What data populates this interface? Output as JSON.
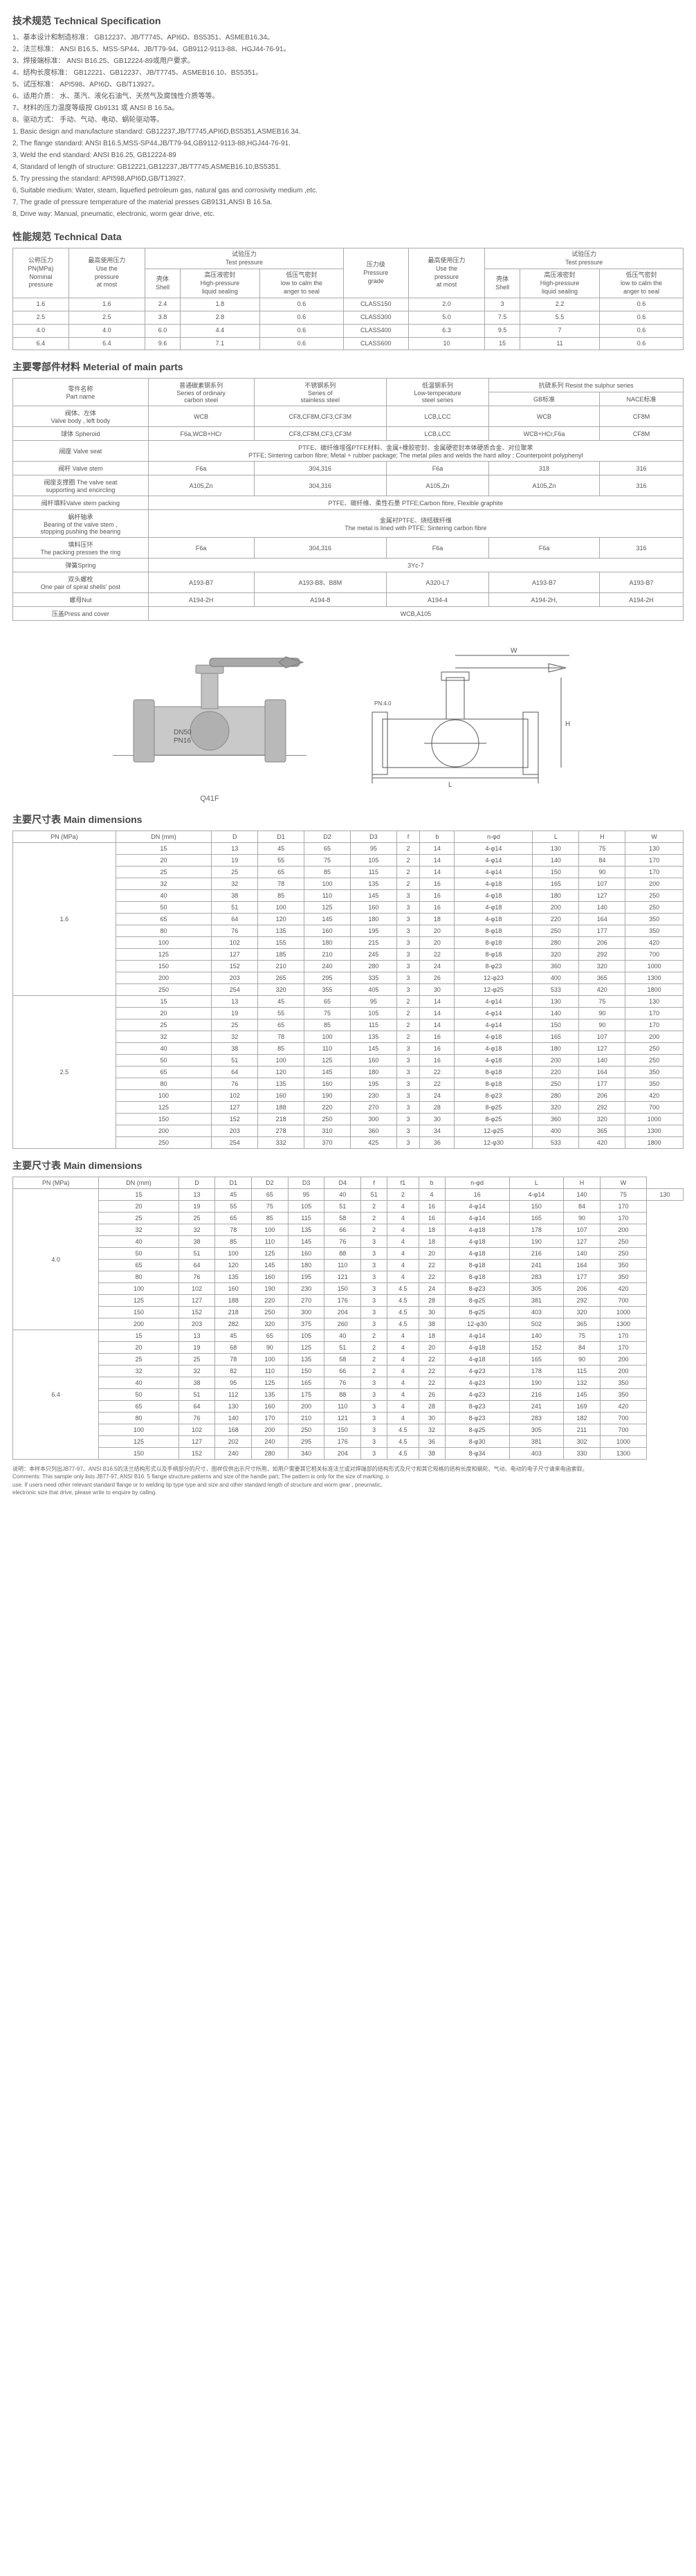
{
  "sections": {
    "techSpecTitle": "技术规范 Technical Specification",
    "perfTitle": "性能规范 Technical Data",
    "materialTitle": "主要零部件材料   Meterial of main parts",
    "dimTitle": "主要尺寸表 Main dimensions",
    "dimTitle2": "主要尺寸表 Main dimensions"
  },
  "specLinesCN": [
    "1、基本设计和制造标准：  GB12237、JB/T7745、API6D、BS5351、ASMEB16.34。",
    "2、法兰标准：  ANSI B16.5、MSS-SP44、JB/T79-94、GB9112-9113-88、HGJ44-76-91。",
    "3、焊接端标准：  ANSI B16.25、GB12224-89或用户要求。",
    "4、结构长度标准：  GB12221、GB12237、JB/T7745、ASMEB16.10、BS5351。",
    "5、试压标准：  API598、API6D、GB/T13927。",
    "6、适用介质：  水、蒸汽、液化石油气、天然气及腐蚀性介质等等。",
    "7、材料的压力温度等级按 Gb9131 或 ANSI B 16.5a。",
    "8、驱动方式：  手动、气动、电动、蜗轮驱动等。"
  ],
  "specLinesEN": [
    "1, Basic design and manufacture standard: GB12237,JB/T7745,API6D,BS5351,ASMEB16.34.",
    "2, The flange standard: ANSI B16.5,MSS-SP44,JB/T79-94,GB9112-9113-88,HGJ44-76-91.",
    "3, Weld the end standard: ANSI B16.25, GB12224-89",
    "4, Standard of length of structure: GB12221,GB12237,JB/T7745,ASMEB16.10,BS5351.",
    "5, Try pressing the standard: API598,API6D,GB/T13927.",
    "6, Suitable medium: Water, steam, liquefied petroleum gas, natural gas and corrosivity medium ,etc.",
    "7, The grade of pressure temperature of the material presses GB9131,ANSI B 16.5a.",
    "8, Drive way: Manual, pneumatic, electronic, worm gear drive, etc."
  ],
  "perf": {
    "headers": {
      "nominal": "公称压力\nPN(MPa)\nNominal\npressure",
      "maxUse": "最高使用压力\nUse the\npressure\nat most",
      "testPress": "试验压力\nTest pressure",
      "shell": "壳体\nShell",
      "highSeal": "高压液密封\nHigh-pressure\nliquid sealing",
      "lowSeal": "低压气密封\nlow to calm the\nanger to seal",
      "grade": "压力级\nPressure\ngrade"
    },
    "rows": [
      [
        "1.6",
        "1.6",
        "2.4",
        "1.8",
        "0.6",
        "CLASS150",
        "2.0",
        "3",
        "2.2",
        "0.6"
      ],
      [
        "2.5",
        "2.5",
        "3.8",
        "2.8",
        "0.6",
        "CLASS300",
        "5.0",
        "7.5",
        "5.5",
        "0.6"
      ],
      [
        "4.0",
        "4.0",
        "6.0",
        "4.4",
        "0.6",
        "CLASS400",
        "6.3",
        "9.5",
        "7",
        "0.6"
      ],
      [
        "6.4",
        "6.4",
        "9.6",
        "7.1",
        "0.6",
        "CLASS600",
        "10",
        "15",
        "11",
        "0.6"
      ]
    ]
  },
  "material": {
    "partHdr": "零件名称\nPart name",
    "series": [
      "普通碳素钢系列\nSeries of ordinary\ncarbon steel",
      "不锈钢系列\nSeries of\nstainless steel",
      "低温钢系列\nLow-temperature\nsteel series",
      "抗硫系列   Resist the sulphur series"
    ],
    "subSeries": [
      "GB标准",
      "NACE标准"
    ],
    "rows": [
      [
        "阀体、左体\nValve body , left body",
        "WCB",
        "CF8,CF8M,CF3,CF3M",
        "LCB,LCC",
        "WCB",
        "CF8M"
      ],
      [
        "球体 Spheroid",
        "F6a,WCB+HCr",
        "CF8,CF8M,CF3,CF3M",
        "LCB,LCC",
        "WCB+HCr,F6a",
        "CF8M"
      ],
      [
        "阀座 Valve seat",
        "__SPAN5__PTFE、碳纤维增强PTFE材料、金属+橡胶密封、金属硬密封本体硬质合金、对位聚苯\nPTFE; Sintering carbon fibre; Metal + rubber package; The metal piles and welds the hard alloy ; Counterpoint polyphenyl"
      ],
      [
        "阀杆 Valve stem",
        "F6a",
        "304,316",
        "F6a",
        "318",
        "316"
      ],
      [
        "阀座支撑圈 The valve seat\nsupporting and encircling",
        "A105,Zn",
        "304,316",
        "A105,Zn",
        "A105,Zn",
        "316"
      ],
      [
        "阀杆填料Valve stem packing",
        "__SPAN5__PTFE、碳纤维、柔性石墨 PTFE;Carbon fibre, Flexible graphite"
      ],
      [
        "蜗杆轴承\nBearing of the valve stem ,\nstopping pushing the bearing",
        "__SPAN5__金属衬PTFE、烧结碳纤维\nThe metal is lined with PTFE; Sintering carbon fibre"
      ],
      [
        "填料压环\nThe packing presses the ring",
        "F6a",
        "304,316",
        "F6a",
        "F6a",
        "316"
      ],
      [
        "弹簧Spring",
        "__SPAN5__3Yc-7"
      ],
      [
        "双头螺栓\nOne pair of spiral shells' post",
        "A193-B7",
        "A193-B8、B8M",
        "A320-L7",
        "A193-B7",
        "A193-B7"
      ],
      [
        "螺母Nut",
        "A194-2H",
        "A194-8",
        "A194-4",
        "A194-2H,",
        "A194-2H"
      ],
      [
        "压盖Press and cover",
        "__SPAN5__WCB,A105"
      ]
    ]
  },
  "diagram": {
    "leftLabel": "Q41F",
    "marks": [
      "DN50",
      "PN16",
      "PN:1.6",
      "PN:2.5"
    ]
  },
  "dim1": {
    "headers": [
      "PN (MPa)",
      "DN (mm)",
      "D",
      "D1",
      "D2",
      "D3",
      "f",
      "b",
      "n-φd",
      "L",
      "H",
      "W"
    ],
    "groups": [
      {
        "pn": "1.6",
        "rows": [
          [
            "15",
            "13",
            "45",
            "65",
            "95",
            "2",
            "14",
            "4-φ14",
            "130",
            "75",
            "130"
          ],
          [
            "20",
            "19",
            "55",
            "75",
            "105",
            "2",
            "14",
            "4-φ14",
            "140",
            "84",
            "170"
          ],
          [
            "25",
            "25",
            "65",
            "85",
            "115",
            "2",
            "14",
            "4-φ14",
            "150",
            "90",
            "170"
          ],
          [
            "32",
            "32",
            "78",
            "100",
            "135",
            "2",
            "16",
            "4-φ18",
            "165",
            "107",
            "200"
          ],
          [
            "40",
            "38",
            "85",
            "110",
            "145",
            "3",
            "16",
            "4-φ18",
            "180",
            "127",
            "250"
          ],
          [
            "50",
            "51",
            "100",
            "125",
            "160",
            "3",
            "16",
            "4-φ18",
            "200",
            "140",
            "250"
          ],
          [
            "65",
            "64",
            "120",
            "145",
            "180",
            "3",
            "18",
            "4-φ18",
            "220",
            "164",
            "350"
          ],
          [
            "80",
            "76",
            "135",
            "160",
            "195",
            "3",
            "20",
            "8-φ18",
            "250",
            "177",
            "350"
          ],
          [
            "100",
            "102",
            "155",
            "180",
            "215",
            "3",
            "20",
            "8-φ18",
            "280",
            "206",
            "420"
          ],
          [
            "125",
            "127",
            "185",
            "210",
            "245",
            "3",
            "22",
            "8-φ18",
            "320",
            "292",
            "700"
          ],
          [
            "150",
            "152",
            "210",
            "240",
            "280",
            "3",
            "24",
            "8-φ23",
            "360",
            "320",
            "1000"
          ],
          [
            "200",
            "203",
            "265",
            "295",
            "335",
            "3",
            "26",
            "12-φ23",
            "400",
            "365",
            "1300"
          ],
          [
            "250",
            "254",
            "320",
            "355",
            "405",
            "3",
            "30",
            "12-φ25",
            "533",
            "420",
            "1800"
          ]
        ]
      },
      {
        "pn": "2.5",
        "rows": [
          [
            "15",
            "13",
            "45",
            "65",
            "95",
            "2",
            "14",
            "4-φ14",
            "130",
            "75",
            "130"
          ],
          [
            "20",
            "19",
            "55",
            "75",
            "105",
            "2",
            "14",
            "4-φ14",
            "140",
            "90",
            "170"
          ],
          [
            "25",
            "25",
            "65",
            "85",
            "115",
            "2",
            "14",
            "4-φ14",
            "150",
            "90",
            "170"
          ],
          [
            "32",
            "32",
            "78",
            "100",
            "135",
            "2",
            "16",
            "4-φ18",
            "165",
            "107",
            "200"
          ],
          [
            "40",
            "38",
            "85",
            "110",
            "145",
            "3",
            "16",
            "4-φ18",
            "180",
            "127",
            "250"
          ],
          [
            "50",
            "51",
            "100",
            "125",
            "160",
            "3",
            "16",
            "4-φ18",
            "200",
            "140",
            "250"
          ],
          [
            "65",
            "64",
            "120",
            "145",
            "180",
            "3",
            "22",
            "8-φ18",
            "220",
            "164",
            "350"
          ],
          [
            "80",
            "76",
            "135",
            "160",
            "195",
            "3",
            "22",
            "8-φ18",
            "250",
            "177",
            "350"
          ],
          [
            "100",
            "102",
            "160",
            "190",
            "230",
            "3",
            "24",
            "8-φ23",
            "280",
            "206",
            "420"
          ],
          [
            "125",
            "127",
            "188",
            "220",
            "270",
            "3",
            "28",
            "8-φ25",
            "320",
            "292",
            "700"
          ],
          [
            "150",
            "152",
            "218",
            "250",
            "300",
            "3",
            "30",
            "8-φ25",
            "360",
            "320",
            "1000"
          ],
          [
            "200",
            "203",
            "278",
            "310",
            "360",
            "3",
            "34",
            "12-φ25",
            "400",
            "365",
            "1300"
          ],
          [
            "250",
            "254",
            "332",
            "370",
            "425",
            "3",
            "36",
            "12-φ30",
            "533",
            "420",
            "1800"
          ]
        ]
      }
    ]
  },
  "dim2": {
    "headers": [
      "PN (MPa)",
      "DN (mm)",
      "D",
      "D1",
      "D2",
      "D3",
      "D4",
      "f",
      "f1",
      "b",
      "n-φd",
      "L",
      "H",
      "W"
    ],
    "groups": [
      {
        "pn": "4.0",
        "rows": [
          [
            "15",
            "13",
            "45",
            "65",
            "95",
            "40",
            "51",
            "2",
            "4",
            "16",
            "4-φ14",
            "140",
            "75",
            "130"
          ],
          [
            "20",
            "19",
            "55",
            "75",
            "105",
            "51",
            "2",
            "4",
            "16",
            "4-φ14",
            "150",
            "84",
            "170"
          ],
          [
            "25",
            "25",
            "65",
            "85",
            "115",
            "58",
            "2",
            "4",
            "16",
            "4-φ14",
            "165",
            "90",
            "170"
          ],
          [
            "32",
            "32",
            "78",
            "100",
            "135",
            "66",
            "2",
            "4",
            "18",
            "4-φ18",
            "178",
            "107",
            "200"
          ],
          [
            "40",
            "38",
            "85",
            "110",
            "145",
            "76",
            "3",
            "4",
            "18",
            "4-φ18",
            "190",
            "127",
            "250"
          ],
          [
            "50",
            "51",
            "100",
            "125",
            "160",
            "88",
            "3",
            "4",
            "20",
            "4-φ18",
            "216",
            "140",
            "250"
          ],
          [
            "65",
            "64",
            "120",
            "145",
            "180",
            "110",
            "3",
            "4",
            "22",
            "8-φ18",
            "241",
            "164",
            "350"
          ],
          [
            "80",
            "76",
            "135",
            "160",
            "195",
            "121",
            "3",
            "4",
            "22",
            "8-φ18",
            "283",
            "177",
            "350"
          ],
          [
            "100",
            "102",
            "160",
            "190",
            "230",
            "150",
            "3",
            "4.5",
            "24",
            "8-φ23",
            "305",
            "206",
            "420"
          ],
          [
            "125",
            "127",
            "188",
            "220",
            "270",
            "176",
            "3",
            "4.5",
            "28",
            "8-φ25",
            "381",
            "292",
            "700"
          ],
          [
            "150",
            "152",
            "218",
            "250",
            "300",
            "204",
            "3",
            "4.5",
            "30",
            "8-φ25",
            "403",
            "320",
            "1000"
          ],
          [
            "200",
            "203",
            "282",
            "320",
            "375",
            "260",
            "3",
            "4.5",
            "38",
            "12-φ30",
            "502",
            "365",
            "1300"
          ]
        ]
      },
      {
        "pn": "6.4",
        "rows": [
          [
            "15",
            "13",
            "45",
            "65",
            "105",
            "40",
            "2",
            "4",
            "18",
            "4-φ14",
            "140",
            "75",
            "170"
          ],
          [
            "20",
            "19",
            "68",
            "90",
            "125",
            "51",
            "2",
            "4",
            "20",
            "4-φ18",
            "152",
            "84",
            "170"
          ],
          [
            "25",
            "25",
            "78",
            "100",
            "135",
            "58",
            "2",
            "4",
            "22",
            "4-φ18",
            "165",
            "90",
            "200"
          ],
          [
            "32",
            "32",
            "82",
            "110",
            "150",
            "66",
            "2",
            "4",
            "22",
            "4-φ23",
            "178",
            "115",
            "200"
          ],
          [
            "40",
            "38",
            "95",
            "125",
            "165",
            "76",
            "3",
            "4",
            "22",
            "4-φ23",
            "190",
            "132",
            "350"
          ],
          [
            "50",
            "51",
            "112",
            "135",
            "175",
            "88",
            "3",
            "4",
            "26",
            "4-φ23",
            "216",
            "145",
            "350"
          ],
          [
            "65",
            "64",
            "130",
            "160",
            "200",
            "110",
            "3",
            "4",
            "28",
            "8-φ23",
            "241",
            "169",
            "420"
          ],
          [
            "80",
            "76",
            "140",
            "170",
            "210",
            "121",
            "3",
            "4",
            "30",
            "8-φ23",
            "283",
            "182",
            "700"
          ],
          [
            "100",
            "102",
            "168",
            "200",
            "250",
            "150",
            "3",
            "4.5",
            "32",
            "8-φ25",
            "305",
            "211",
            "700"
          ],
          [
            "125",
            "127",
            "202",
            "240",
            "295",
            "176",
            "3",
            "4.5",
            "36",
            "8-φ30",
            "381",
            "302",
            "1000"
          ],
          [
            "150",
            "152",
            "240",
            "280",
            "340",
            "204",
            "3",
            "4.5",
            "38",
            "8-φ34",
            "403",
            "330",
            "1300"
          ]
        ]
      }
    ]
  },
  "footer": "说明：本样本只列出JB77-97、ANSI B16.5的法兰结构形式以及手柄部分的尺寸，图样仅供出示尺寸所用，如用户需要其它相关标准法兰或对焊端部的结构形式及尺寸和其它规格的结构长度和蜗轮、气动、电动的电子尺寸请来电函索取。\nComments: This sample only lists JB77-97, ANSI B16. 5 flange structure patterns and size of the handle part; The pattern is only for the size of marking. o\nuse. If users need other relevant standard flange or to welding tip type type and size and other standard length of structure and worm gear , pneumatic,\nelectronic size that drive, please write to enquire by calling."
}
